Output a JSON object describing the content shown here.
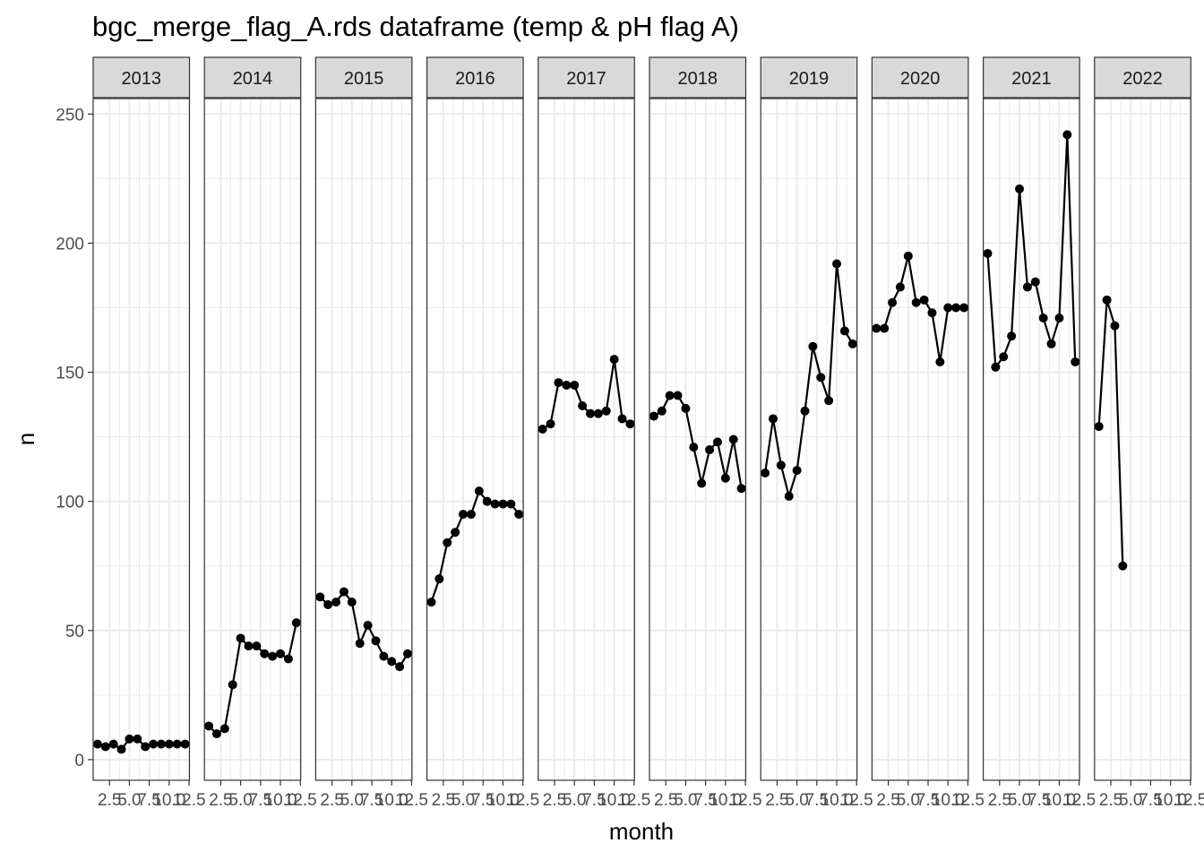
{
  "chart_data": {
    "type": "line",
    "title": "bgc_merge_flag_A.rds dataframe (temp & pH flag A)",
    "xlabel": "month",
    "ylabel": "n",
    "ylim": [
      -8,
      256
    ],
    "xlim": [
      0.45,
      12.55
    ],
    "y_ticks": [
      0,
      50,
      100,
      150,
      200,
      250
    ],
    "x_ticks": [
      2.5,
      5.0,
      7.5,
      10.0,
      12.5
    ],
    "x_tick_labels": [
      "2.5",
      "5.0",
      "7.5",
      "10.0",
      "12.5"
    ],
    "grid": true,
    "facet_by": "year",
    "colors": {
      "line": "#000000",
      "point": "#000000",
      "strip_fill": "#d9d9d9",
      "grid": "#ebebeb"
    },
    "panels": [
      {
        "year": "2013",
        "x": [
          1,
          2,
          3,
          4,
          5,
          6,
          7,
          8,
          9,
          10,
          11,
          12
        ],
        "y": [
          6,
          5,
          6,
          4,
          8,
          8,
          5,
          6,
          6,
          6,
          6,
          6
        ]
      },
      {
        "year": "2014",
        "x": [
          1,
          2,
          3,
          4,
          5,
          6,
          7,
          8,
          9,
          10,
          11,
          12
        ],
        "y": [
          13,
          10,
          12,
          29,
          47,
          44,
          44,
          41,
          40,
          41,
          39,
          53
        ]
      },
      {
        "year": "2015",
        "x": [
          1,
          2,
          3,
          4,
          5,
          6,
          7,
          8,
          9,
          10,
          11,
          12
        ],
        "y": [
          63,
          60,
          61,
          65,
          61,
          45,
          52,
          46,
          40,
          38,
          36,
          41
        ]
      },
      {
        "year": "2016",
        "x": [
          1,
          2,
          3,
          4,
          5,
          6,
          7,
          8,
          9,
          10,
          11,
          12
        ],
        "y": [
          61,
          70,
          84,
          88,
          95,
          95,
          104,
          100,
          99,
          99,
          99,
          95
        ]
      },
      {
        "year": "2017",
        "x": [
          1,
          2,
          3,
          4,
          5,
          6,
          7,
          8,
          9,
          10,
          11,
          12
        ],
        "y": [
          128,
          130,
          146,
          145,
          145,
          137,
          134,
          134,
          135,
          155,
          132,
          130
        ]
      },
      {
        "year": "2018",
        "x": [
          1,
          2,
          3,
          4,
          5,
          6,
          7,
          8,
          9,
          10,
          11,
          12
        ],
        "y": [
          133,
          135,
          141,
          141,
          136,
          121,
          107,
          120,
          123,
          109,
          124,
          105
        ]
      },
      {
        "year": "2019",
        "x": [
          1,
          2,
          3,
          4,
          5,
          6,
          7,
          8,
          9,
          10,
          11,
          12
        ],
        "y": [
          111,
          132,
          114,
          102,
          112,
          135,
          160,
          148,
          139,
          192,
          166,
          161
        ]
      },
      {
        "year": "2020",
        "x": [
          1,
          2,
          3,
          4,
          5,
          6,
          7,
          8,
          9,
          10,
          11,
          12
        ],
        "y": [
          167,
          167,
          177,
          183,
          195,
          177,
          178,
          173,
          154,
          175,
          175,
          175
        ]
      },
      {
        "year": "2021",
        "x": [
          1,
          2,
          3,
          4,
          5,
          6,
          7,
          8,
          9,
          10,
          11,
          12
        ],
        "y": [
          196,
          152,
          156,
          164,
          221,
          183,
          185,
          171,
          161,
          171,
          242,
          154
        ]
      },
      {
        "year": "2022",
        "x": [
          1,
          2,
          3,
          4
        ],
        "y": [
          129,
          178,
          168,
          75
        ]
      }
    ]
  }
}
